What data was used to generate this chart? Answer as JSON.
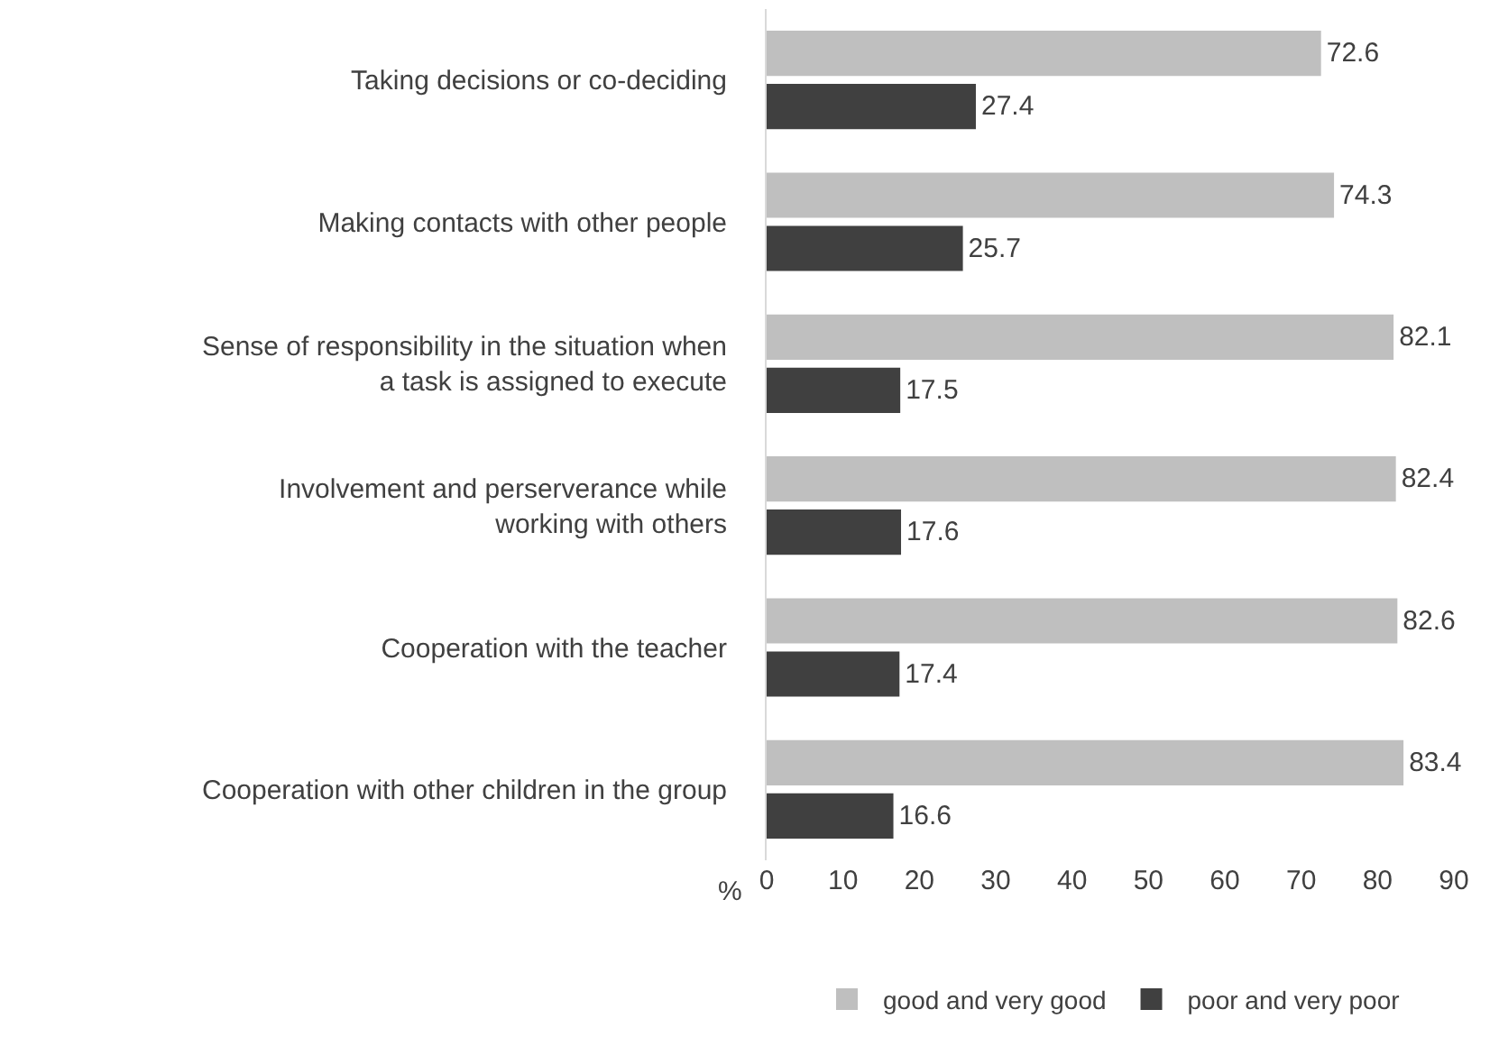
{
  "chart_data": {
    "type": "bar",
    "orientation": "horizontal",
    "categories": [
      "Taking decisions or co-deciding",
      "Making contacts with other people",
      "Sense of responsibility in the situation when\na task is assigned to execute",
      "Involvement and perserverance while\nworking with others",
      "Cooperation with the teacher",
      "Cooperation with other children in the group"
    ],
    "series": [
      {
        "name": "good and very good",
        "color": "#bfbfbf",
        "values": [
          72.6,
          74.3,
          82.1,
          82.4,
          82.6,
          83.4
        ]
      },
      {
        "name": "poor and very poor",
        "color": "#404040",
        "values": [
          27.4,
          25.7,
          17.5,
          17.6,
          17.4,
          16.6
        ]
      }
    ],
    "xlabel": "%",
    "xlim": [
      0,
      90
    ],
    "xticks": [
      0,
      10,
      20,
      30,
      40,
      50,
      60,
      70,
      80,
      90
    ],
    "data_labels": true,
    "legend": "bottom"
  }
}
